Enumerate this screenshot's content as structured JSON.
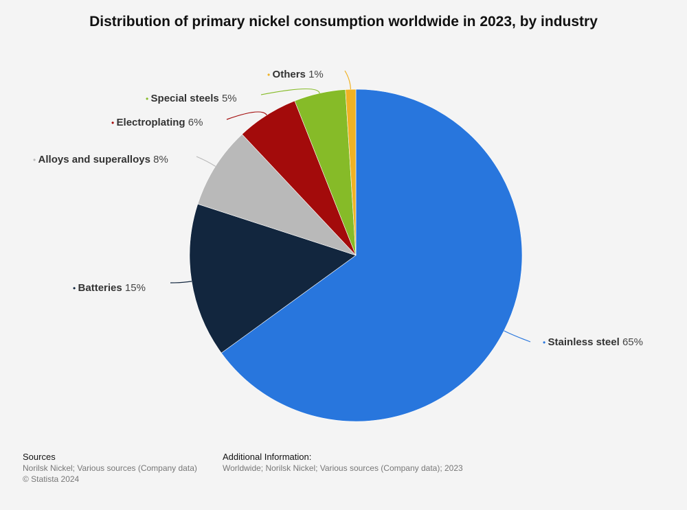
{
  "title": "Distribution of primary nickel consumption worldwide in 2023, by industry",
  "chart_data": {
    "type": "pie",
    "title": "Distribution of primary nickel consumption worldwide in 2023, by industry",
    "unit": "%",
    "slices": [
      {
        "label": "Stainless steel",
        "value": 65,
        "color": "#2876dd"
      },
      {
        "label": "Batteries",
        "value": 15,
        "color": "#12263e"
      },
      {
        "label": "Alloys and superalloys",
        "value": 8,
        "color": "#b9b9b9"
      },
      {
        "label": "Electroplating",
        "value": 6,
        "color": "#a30b0b"
      },
      {
        "label": "Special steels",
        "value": 5,
        "color": "#86bb28"
      },
      {
        "label": "Others",
        "value": 1,
        "color": "#f0b224"
      }
    ]
  },
  "footer": {
    "sources_heading": "Sources",
    "sources_text": "Norilsk Nickel; Various sources (Company data)",
    "copyright": "© Statista 2024",
    "additional_heading": "Additional Information:",
    "additional_text": "Worldwide; Norilsk Nickel; Various sources (Company data); 2023"
  }
}
